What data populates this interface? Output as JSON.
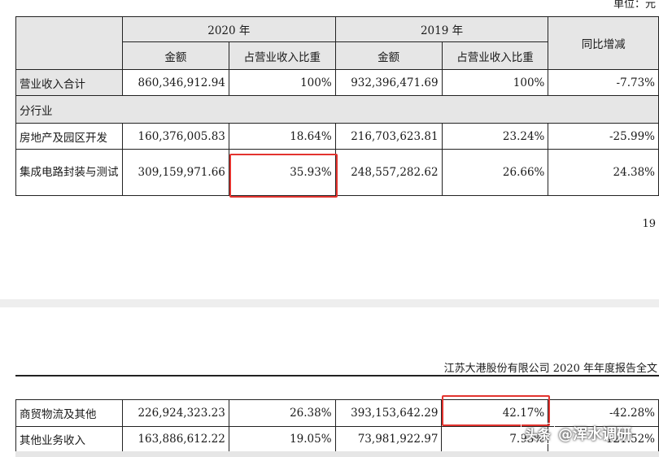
{
  "header": {
    "unit_label": "单位：元",
    "year_2020": "2020 年",
    "year_2019": "2019 年",
    "yoy": "同比增减",
    "amount": "金额",
    "ratio": "占营业收入比重"
  },
  "rows": {
    "total": {
      "label": "营业收入合计",
      "amt2020": "860,346,912.94",
      "pct2020": "100%",
      "amt2019": "932,396,471.69",
      "pct2019": "100%",
      "yoy": "-7.73%"
    },
    "section": {
      "label": "分行业"
    },
    "realestate": {
      "label": "房地产及园区开发",
      "amt2020": "160,376,005.83",
      "pct2020": "18.64%",
      "amt2019": "216,703,623.81",
      "pct2019": "23.24%",
      "yoy": "-25.99%"
    },
    "ic": {
      "label": "集成电路封装与测试",
      "amt2020": "309,159,971.66",
      "pct2020": "35.93%",
      "amt2019": "248,557,282.62",
      "pct2019": "26.66%",
      "yoy": "24.38%"
    },
    "trade": {
      "label": "商贸物流及其他",
      "amt2020": "226,924,323.23",
      "pct2020": "26.38%",
      "amt2019": "393,153,642.29",
      "pct2019": "42.17%",
      "yoy": "-42.28%"
    },
    "other": {
      "label": "其他业务收入",
      "amt2020": "163,886,612.22",
      "pct2020": "19.05%",
      "amt2019": "73,981,922.97",
      "pct2019": "7.93%",
      "yoy": "121.52%"
    }
  },
  "page_number": "19",
  "company_line": "江苏大港股份有限公司 2020 年年度报告全文",
  "watermark": {
    "badge": "头条",
    "handle": "@浑水调研"
  }
}
